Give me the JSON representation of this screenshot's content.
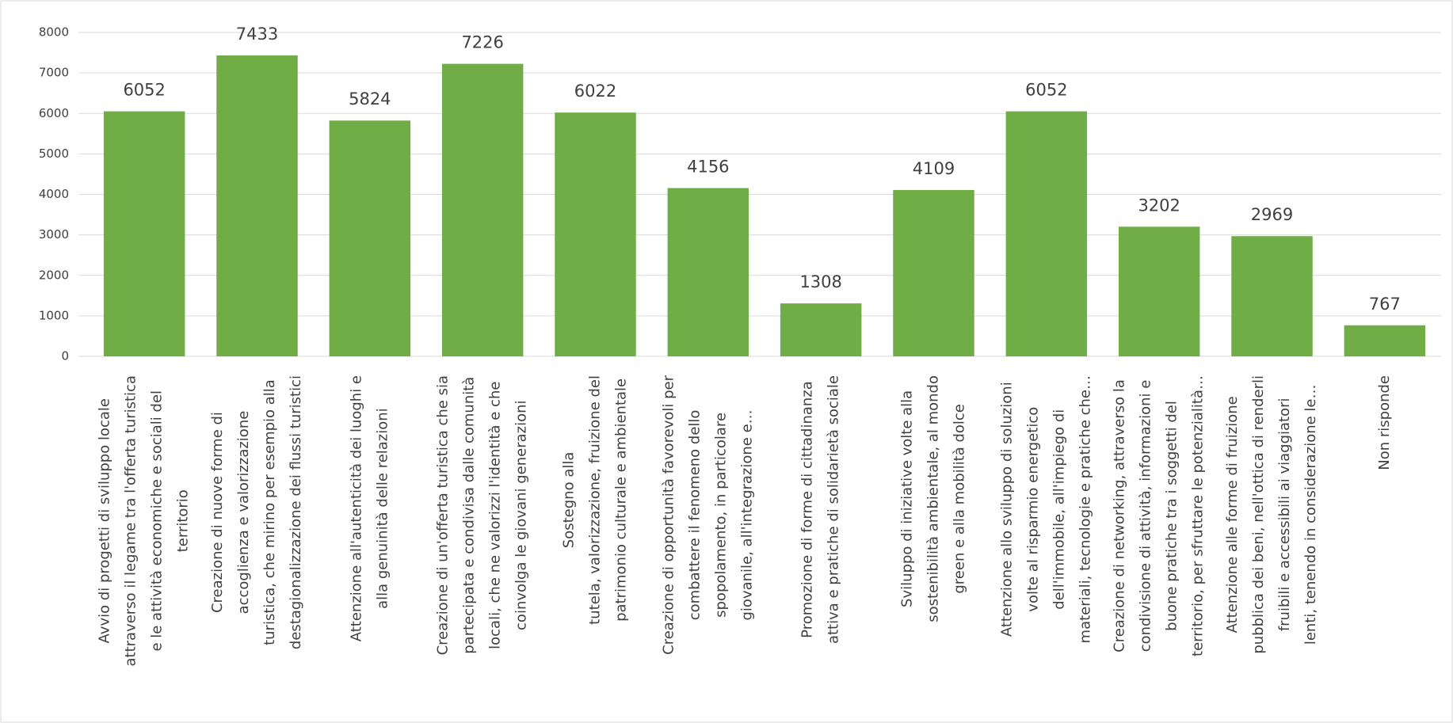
{
  "chart_data": {
    "type": "bar",
    "categories": [
      "Avvio di progetti di sviluppo locale\nattraverso il legame tra l'offerta turistica\ne le attività economiche e sociali del\nterritorio",
      "Creazione di nuove forme di\naccoglienza e valorizzazione\nturistica, che mirino per esempio alla\ndestagionalizzazione dei flussi turistici",
      "Attenzione all'autenticità dei luoghi e\nalla genuinità delle relazioni",
      "Creazione di un'offerta turistica che sia\npartecipata e condivisa dalle comunità\nlocali, che ne valorizzi l'identità e che\ncoinvolga le giovani generazioni",
      "Sostegno alla\ntutela, valorizzazione, fruizione del\npatrimonio culturale e ambientale",
      "Creazione di opportunità favorevoli per\ncombattere il fenomeno dello\nspopolamento, in particolare\ngiovanile, all'integrazione e…",
      "Promozione di forme di cittadinanza\nattiva e pratiche di solidarietà sociale",
      "Sviluppo di iniziative volte alla\nsostenibilità ambientale, al mondo\ngreen e alla mobilità dolce",
      "Attenzione allo sviluppo di soluzioni\nvolte al risparmio energetico\ndell'immobile, all'impiego di\nmateriali, tecnologie e pratiche che…",
      "Creazione di networking,  attraverso la\ncondivisione di attività,  informazioni e\nbuone pratiche tra i soggetti del\nterritorio,  per sfruttare le potenzialità…",
      "Attenzione alle forme di fruizione\npubblica dei beni, nell'ottica di renderli\nfruibili e accessibili ai viaggiatori\nlenti,  tenendo in considerazione le…",
      "Non risponde"
    ],
    "values": [
      6052,
      7433,
      5824,
      7226,
      6022,
      4156,
      1308,
      4109,
      6052,
      3202,
      2969,
      767
    ],
    "color": "#70ad47",
    "ylim": [
      0,
      8000
    ],
    "yticks": [
      0,
      1000,
      2000,
      3000,
      4000,
      5000,
      6000,
      7000,
      8000
    ],
    "grid": true
  }
}
